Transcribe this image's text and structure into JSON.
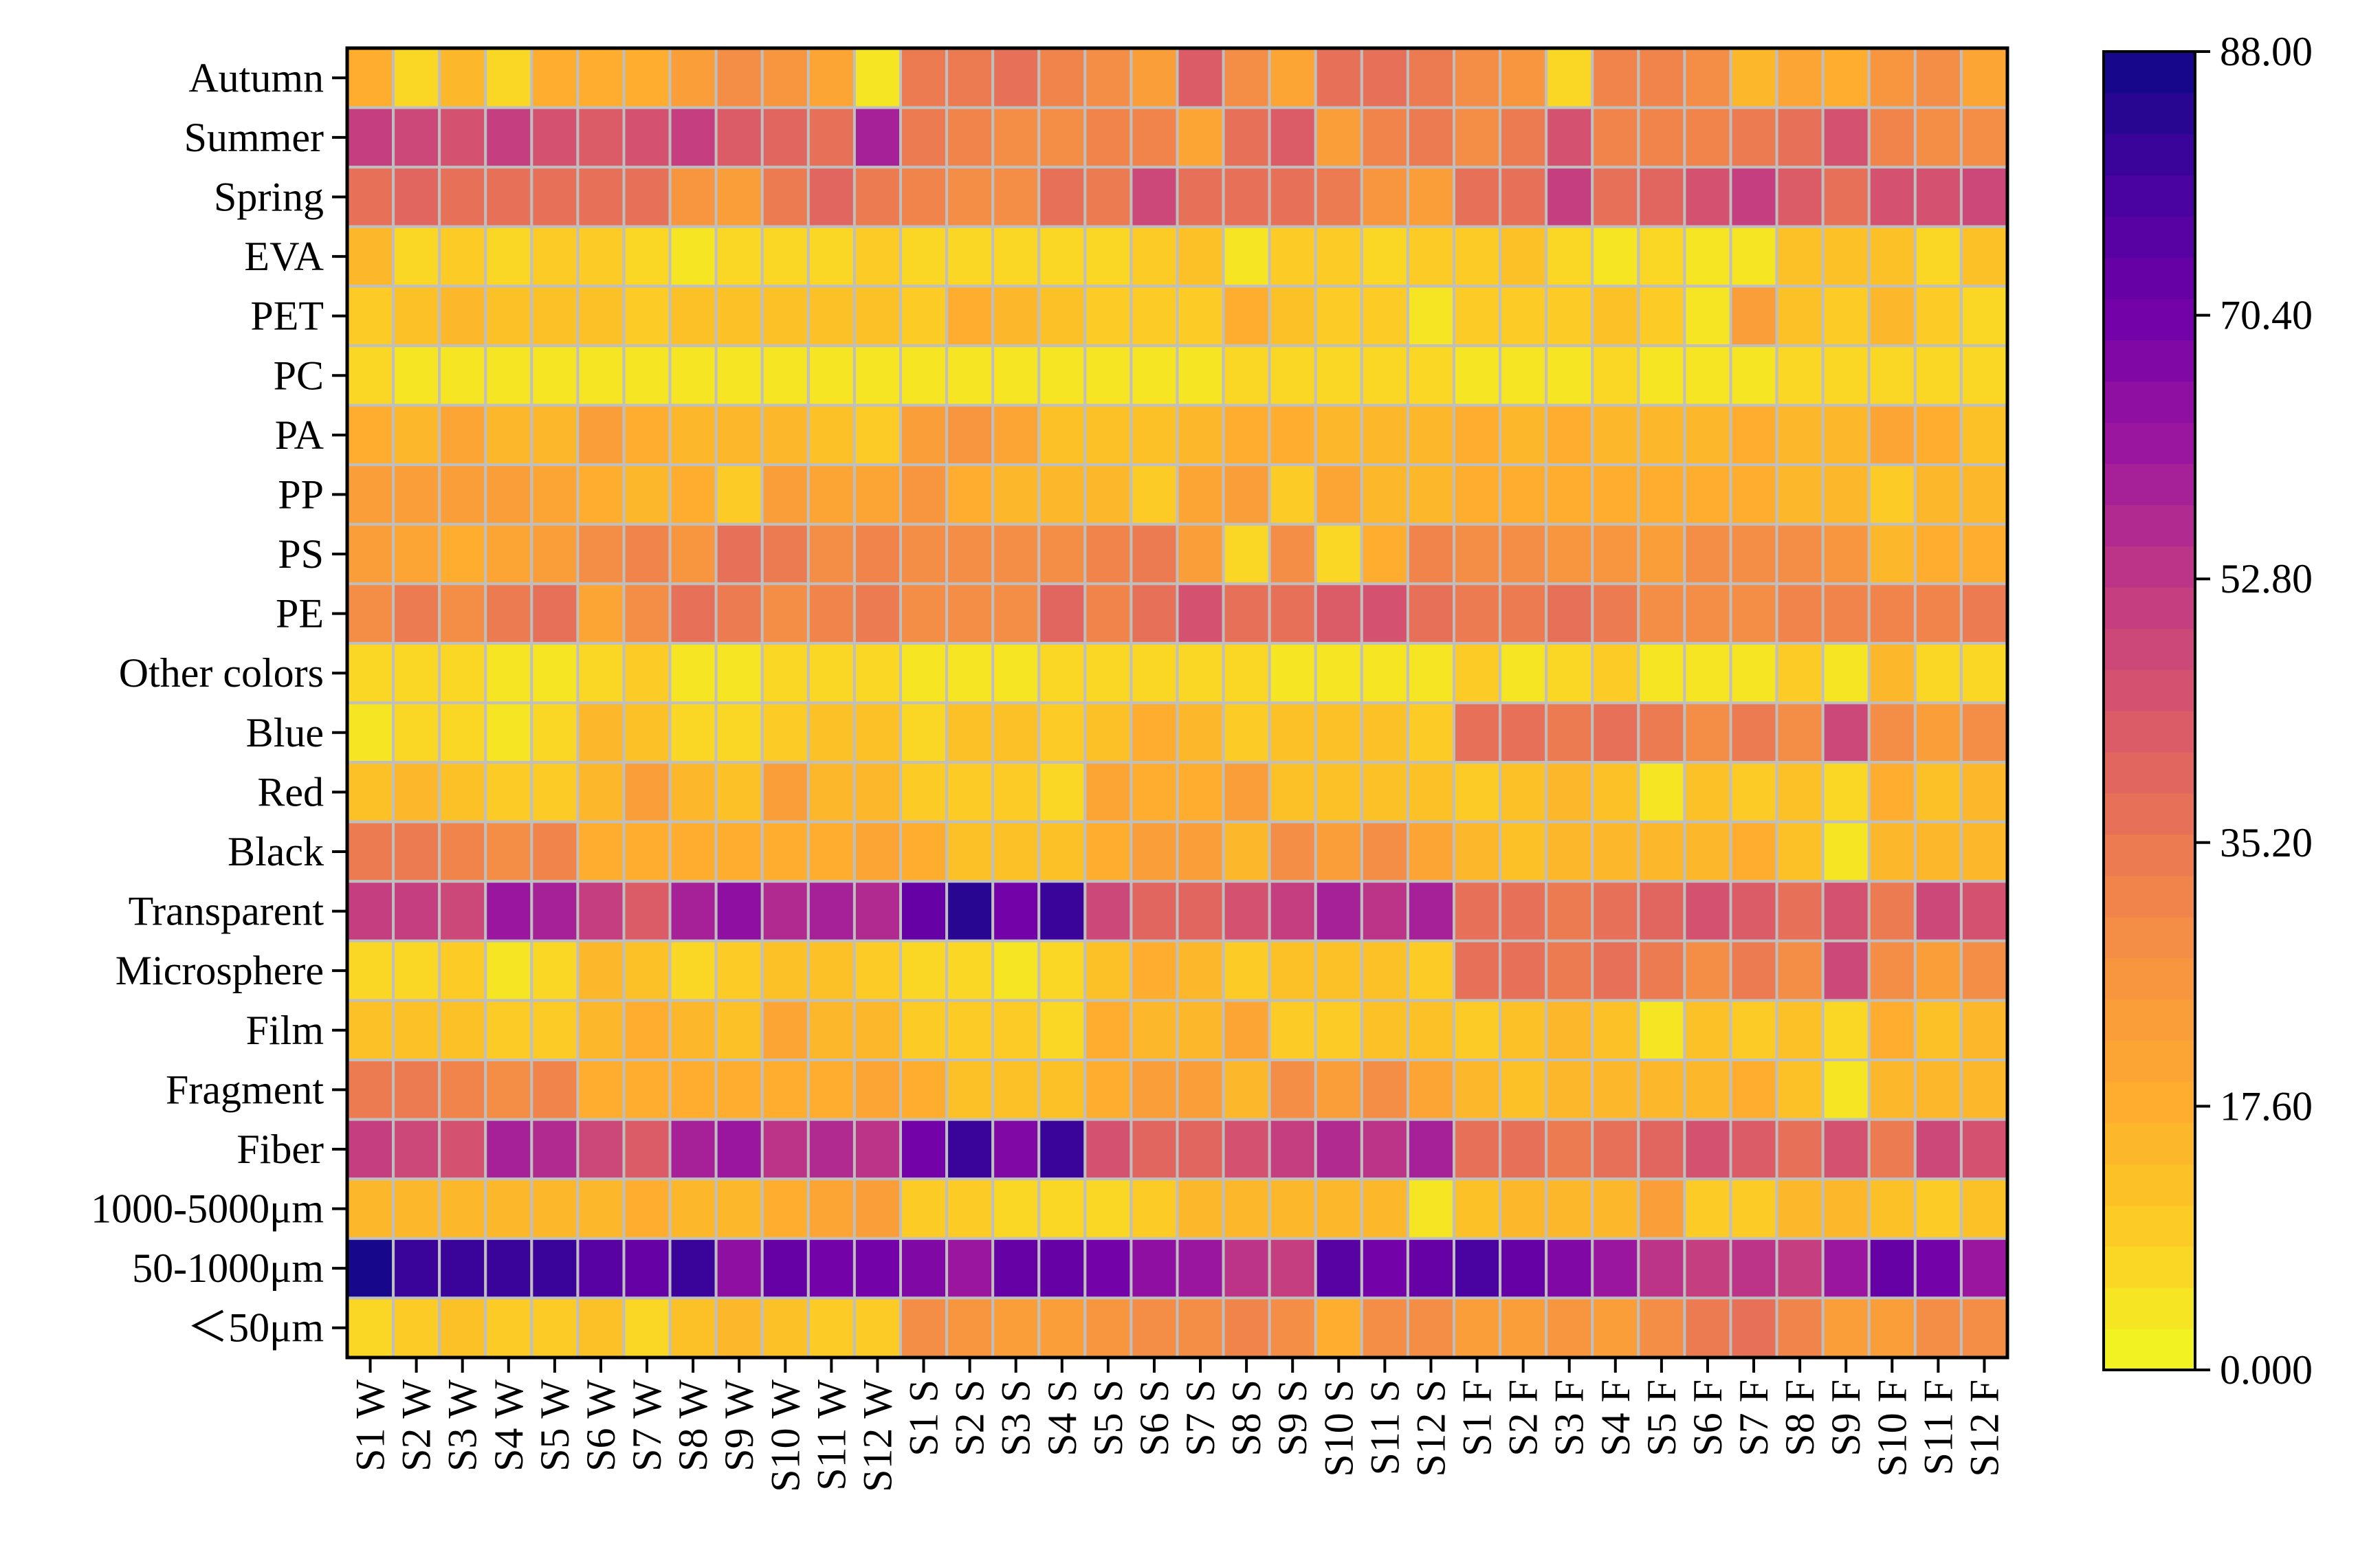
{
  "chart_data": {
    "type": "heatmap",
    "rows": [
      "Autumn",
      "Summer",
      "Spring",
      "EVA",
      "PET",
      "PC",
      "PA",
      "PP",
      "PS",
      "PE",
      "Other colors",
      "Blue",
      "Red",
      "Black",
      "Transparent",
      "Microsphere",
      "Film",
      "Fragment",
      "Fiber",
      "1000-5000μm",
      "50-1000μm",
      "＜50μm"
    ],
    "columns": [
      "S1 W",
      "S2 W",
      "S3 W",
      "S4 W",
      "S5 W",
      "S6 W",
      "S7 W",
      "S8 W",
      "S9 W",
      "S10 W",
      "S11 W",
      "S12 W",
      "S1 S",
      "S2 S",
      "S3 S",
      "S4 S",
      "S5 S",
      "S6 S",
      "S7 S",
      "S8 S",
      "S9 S",
      "S10 S",
      "S11 S",
      "S12 S",
      "S1 F",
      "S2 F",
      "S3 F",
      "S4 F",
      "S5 F",
      "S6 F",
      "S7 F",
      "S8 F",
      "S9 F",
      "S10 F",
      "S11 F",
      "S12 F"
    ],
    "values": [
      [
        17,
        8,
        15,
        8,
        19,
        19,
        18,
        22,
        30,
        27,
        20,
        5,
        33,
        35,
        36,
        32,
        28,
        22,
        42,
        30,
        20,
        36,
        38,
        33,
        30,
        26,
        7,
        32,
        31,
        30,
        15,
        21,
        17,
        26,
        30,
        20
      ],
      [
        50,
        48,
        46,
        50,
        44,
        43,
        45,
        52,
        42,
        40,
        37,
        58,
        34,
        31,
        30,
        30,
        31,
        32,
        20,
        38,
        42,
        22,
        32,
        33,
        30,
        34,
        44,
        32,
        31,
        32,
        34,
        36,
        46,
        32,
        28,
        30
      ],
      [
        36,
        40,
        38,
        38,
        36,
        36,
        38,
        26,
        24,
        34,
        40,
        34,
        32,
        30,
        28,
        36,
        34,
        48,
        36,
        36,
        38,
        34,
        26,
        24,
        38,
        36,
        50,
        38,
        40,
        46,
        50,
        42,
        36,
        44,
        44,
        48
      ],
      [
        14,
        8,
        10,
        7,
        9,
        10,
        7,
        5,
        8,
        7,
        7,
        9,
        6,
        6,
        6,
        6,
        6,
        10,
        11,
        5,
        9,
        9,
        8,
        10,
        9,
        11,
        6,
        5,
        7,
        4,
        3,
        12,
        13,
        11,
        8,
        13
      ],
      [
        10,
        12,
        14,
        12,
        12,
        12,
        10,
        12,
        12,
        12,
        12,
        12,
        10,
        17,
        14,
        12,
        10,
        9,
        9,
        18,
        12,
        9,
        9,
        3,
        10,
        10,
        10,
        12,
        10,
        5,
        24,
        12,
        9,
        15,
        9,
        8
      ],
      [
        6,
        5,
        4,
        5,
        4,
        5,
        4,
        5,
        4,
        3,
        3,
        4,
        4,
        4,
        5,
        4,
        3,
        4,
        3,
        6,
        6,
        6,
        6,
        8,
        4,
        4,
        4,
        6,
        5,
        5,
        4,
        6,
        6,
        8,
        8,
        8
      ],
      [
        17,
        16,
        20,
        16,
        15,
        22,
        18,
        15,
        16,
        14,
        13,
        10,
        22,
        27,
        20,
        13,
        12,
        12,
        15,
        17,
        18,
        16,
        14,
        14,
        18,
        16,
        18,
        16,
        16,
        16,
        17,
        16,
        16,
        20,
        19,
        12
      ],
      [
        22,
        22,
        22,
        24,
        20,
        18,
        16,
        18,
        10,
        22,
        21,
        20,
        26,
        17,
        15,
        15,
        14,
        10,
        21,
        24,
        10,
        20,
        16,
        16,
        17,
        17,
        17,
        17,
        17,
        18,
        17,
        14,
        14,
        10,
        14,
        15
      ],
      [
        22,
        20,
        18,
        20,
        22,
        28,
        32,
        26,
        38,
        34,
        30,
        31,
        28,
        28,
        28,
        30,
        32,
        34,
        22,
        8,
        30,
        8,
        18,
        31,
        28,
        28,
        26,
        26,
        24,
        28,
        30,
        28,
        26,
        14,
        17,
        18
      ],
      [
        30,
        34,
        30,
        33,
        38,
        20,
        28,
        36,
        33,
        30,
        31,
        33,
        28,
        28,
        30,
        40,
        32,
        36,
        46,
        36,
        38,
        42,
        46,
        36,
        34,
        34,
        36,
        34,
        28,
        30,
        28,
        32,
        32,
        32,
        32,
        34
      ],
      [
        6,
        7,
        6,
        5,
        4,
        8,
        9,
        4,
        5,
        6,
        6,
        8,
        5,
        5,
        5,
        6,
        6,
        6,
        8,
        7,
        5,
        4,
        5,
        5,
        10,
        4,
        7,
        9,
        4,
        5,
        4,
        9,
        3,
        14,
        8,
        8
      ],
      [
        5,
        8,
        7,
        5,
        6,
        14,
        12,
        8,
        8,
        10,
        12,
        12,
        8,
        11,
        11,
        10,
        12,
        18,
        14,
        10,
        12,
        12,
        12,
        10,
        36,
        36,
        34,
        36,
        34,
        30,
        34,
        28,
        48,
        28,
        24,
        28
      ],
      [
        13,
        14,
        13,
        9,
        10,
        16,
        22,
        16,
        13,
        22,
        16,
        15,
        9,
        10,
        10,
        8,
        20,
        18,
        18,
        22,
        11,
        11,
        12,
        13,
        10,
        12,
        14,
        11,
        4,
        13,
        10,
        12,
        7,
        19,
        12,
        14
      ],
      [
        34,
        34,
        32,
        29,
        32,
        18,
        18,
        19,
        18,
        17,
        18,
        21,
        17,
        12,
        13,
        12,
        19,
        24,
        24,
        15,
        28,
        22,
        28,
        20,
        14,
        12,
        14,
        14,
        14,
        16,
        17,
        13,
        5,
        14,
        14,
        14
      ],
      [
        52,
        50,
        48,
        62,
        58,
        50,
        42,
        60,
        65,
        56,
        58,
        56,
        72,
        84,
        70,
        82,
        48,
        40,
        40,
        46,
        52,
        58,
        54,
        60,
        38,
        36,
        34,
        38,
        40,
        46,
        42,
        38,
        44,
        34,
        48,
        44
      ],
      [
        6,
        8,
        9,
        5,
        8,
        14,
        12,
        8,
        10,
        12,
        12,
        10,
        8,
        6,
        5,
        6,
        12,
        18,
        14,
        10,
        12,
        12,
        12,
        10,
        36,
        36,
        34,
        36,
        34,
        30,
        34,
        28,
        48,
        28,
        24,
        28
      ],
      [
        12,
        13,
        12,
        9,
        10,
        14,
        18,
        14,
        12,
        20,
        14,
        14,
        9,
        10,
        10,
        8,
        18,
        16,
        16,
        20,
        10,
        10,
        12,
        12,
        10,
        12,
        14,
        11,
        4,
        13,
        10,
        12,
        7,
        19,
        12,
        14
      ],
      [
        34,
        34,
        32,
        29,
        32,
        18,
        18,
        19,
        18,
        17,
        18,
        21,
        17,
        12,
        13,
        12,
        19,
        24,
        24,
        15,
        28,
        22,
        28,
        20,
        14,
        12,
        14,
        14,
        14,
        16,
        17,
        13,
        5,
        14,
        14,
        14
      ],
      [
        50,
        48,
        46,
        60,
        56,
        48,
        42,
        58,
        62,
        54,
        56,
        54,
        70,
        82,
        68,
        82,
        46,
        40,
        40,
        44,
        52,
        56,
        54,
        58,
        38,
        36,
        34,
        38,
        40,
        46,
        42,
        38,
        44,
        34,
        48,
        44
      ],
      [
        14,
        14,
        14,
        14,
        14,
        16,
        18,
        16,
        16,
        18,
        20,
        22,
        10,
        10,
        8,
        8,
        8,
        10,
        14,
        14,
        14,
        14,
        14,
        4,
        12,
        14,
        14,
        16,
        24,
        10,
        10,
        16,
        16,
        12,
        10,
        12
      ],
      [
        88,
        82,
        80,
        82,
        80,
        76,
        74,
        80,
        64,
        72,
        70,
        70,
        66,
        62,
        72,
        74,
        70,
        64,
        62,
        54,
        52,
        76,
        70,
        74,
        78,
        74,
        66,
        62,
        54,
        52,
        54,
        52,
        62,
        72,
        70,
        62
      ],
      [
        8,
        10,
        12,
        10,
        10,
        12,
        8,
        12,
        16,
        12,
        10,
        10,
        28,
        26,
        24,
        24,
        26,
        30,
        30,
        32,
        30,
        18,
        30,
        28,
        24,
        22,
        26,
        24,
        28,
        34,
        36,
        32,
        22,
        24,
        30,
        30
      ]
    ],
    "colorbar": {
      "min": 0,
      "max": 88,
      "ticks": [
        "0.000",
        "17.60",
        "35.20",
        "52.80",
        "70.40",
        "88.00"
      ],
      "steps": 32,
      "colormap": "plasma_r"
    },
    "grid": true,
    "cell_border_color": "#bfbfbf"
  }
}
